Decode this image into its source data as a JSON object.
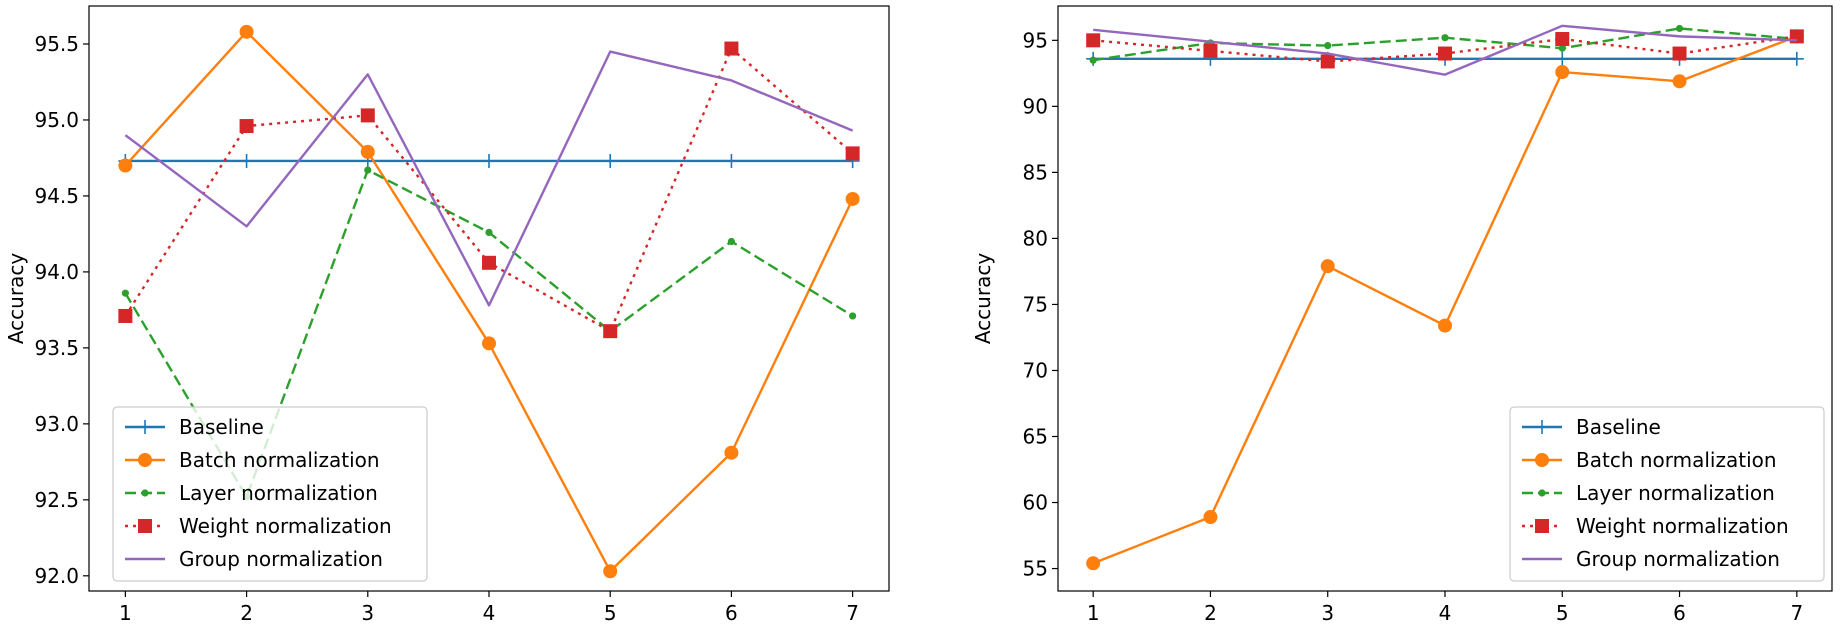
{
  "chart_data": [
    {
      "type": "line",
      "xlabel": "",
      "ylabel": "Accuracy",
      "x": [
        1,
        2,
        3,
        4,
        5,
        6,
        7
      ],
      "xticks": [
        "1",
        "2",
        "3",
        "4",
        "5",
        "6",
        "7"
      ],
      "xlim": [
        0.7,
        7.3
      ],
      "yticks": [
        "92.0",
        "92.5",
        "93.0",
        "93.5",
        "94.0",
        "94.5",
        "95.0",
        "95.5"
      ],
      "ylim": [
        91.9,
        95.75
      ],
      "grid": false,
      "legend": "lower-left",
      "series": [
        {
          "name": "Baseline",
          "color": "#1f77b4",
          "style": "solid",
          "marker": "plus",
          "values": [
            94.73,
            94.73,
            94.73,
            94.73,
            94.73,
            94.73,
            94.73
          ]
        },
        {
          "name": "Batch normalization",
          "color": "#ff7f0e",
          "style": "solid",
          "marker": "circle",
          "values": [
            94.7,
            95.58,
            94.79,
            93.53,
            92.03,
            92.81,
            94.48
          ]
        },
        {
          "name": "Layer normalization",
          "color": "#2ca02c",
          "style": "dashed",
          "marker": "dot",
          "values": [
            93.86,
            92.52,
            94.67,
            94.26,
            93.61,
            94.2,
            93.71
          ]
        },
        {
          "name": "Weight normalization",
          "color": "#d62728",
          "style": "dotted",
          "marker": "square",
          "values": [
            93.71,
            94.96,
            95.03,
            94.06,
            93.61,
            95.47,
            94.78
          ]
        },
        {
          "name": "Group normalization",
          "color": "#9467bd",
          "style": "solid",
          "marker": "none",
          "values": [
            94.9,
            94.3,
            95.3,
            93.78,
            95.45,
            95.26,
            94.93
          ]
        }
      ]
    },
    {
      "type": "line",
      "xlabel": "",
      "ylabel": "Accuracy",
      "x": [
        1,
        2,
        3,
        4,
        5,
        6,
        7
      ],
      "xticks": [
        "1",
        "2",
        "3",
        "4",
        "5",
        "6",
        "7"
      ],
      "xlim": [
        0.7,
        7.3
      ],
      "yticks": [
        "55",
        "60",
        "65",
        "70",
        "75",
        "80",
        "85",
        "90",
        "95"
      ],
      "ylim": [
        53.3,
        97.6
      ],
      "grid": false,
      "legend": "lower-right",
      "series": [
        {
          "name": "Baseline",
          "color": "#1f77b4",
          "style": "solid",
          "marker": "plus",
          "values": [
            93.6,
            93.6,
            93.6,
            93.6,
            93.6,
            93.6,
            93.6
          ]
        },
        {
          "name": "Batch normalization",
          "color": "#ff7f0e",
          "style": "solid",
          "marker": "circle",
          "values": [
            55.4,
            58.9,
            77.9,
            73.4,
            92.6,
            91.9,
            95.3
          ]
        },
        {
          "name": "Layer normalization",
          "color": "#2ca02c",
          "style": "dashed",
          "marker": "dot",
          "values": [
            93.5,
            94.8,
            94.6,
            95.2,
            94.4,
            95.9,
            95.1
          ]
        },
        {
          "name": "Weight normalization",
          "color": "#d62728",
          "style": "dotted",
          "marker": "square",
          "values": [
            95.0,
            94.2,
            93.4,
            94.0,
            95.1,
            94.0,
            95.3
          ]
        },
        {
          "name": "Group normalization",
          "color": "#9467bd",
          "style": "solid",
          "marker": "none",
          "values": [
            95.8,
            94.9,
            94.0,
            92.4,
            96.1,
            95.3,
            95.0
          ]
        }
      ]
    }
  ]
}
